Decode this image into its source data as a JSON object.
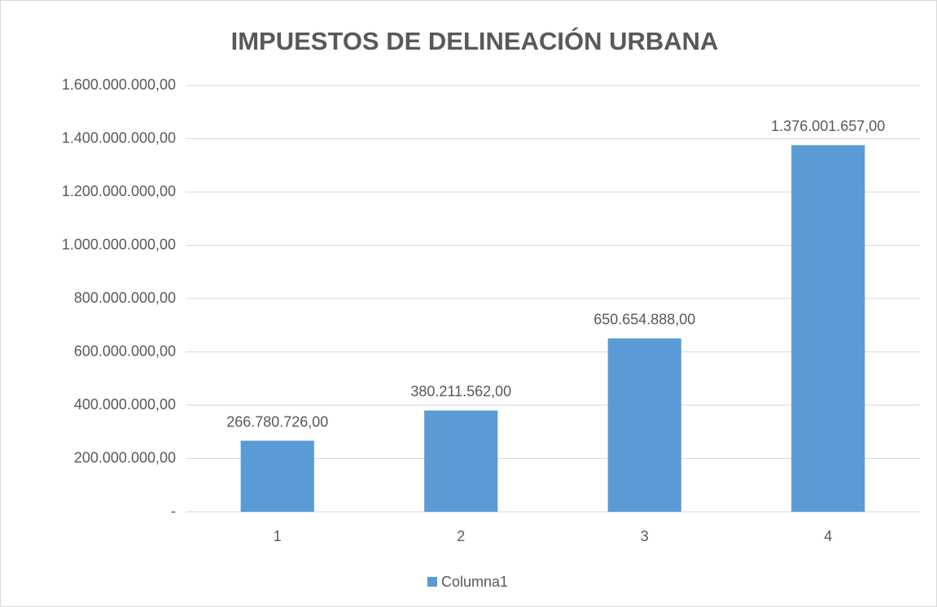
{
  "chart_data": {
    "type": "bar",
    "title": "IMPUESTOS DE DELINEACIÓN URBANA",
    "categories": [
      "1",
      "2",
      "3",
      "4"
    ],
    "series": [
      {
        "name": "Columna1",
        "color": "#5b9bd5",
        "values": [
          266780726,
          380211562,
          650654888,
          1376001657
        ],
        "value_labels": [
          "266.780.726,00",
          "380.211.562,00",
          "650.654.888,00",
          "1.376.001.657,00"
        ]
      }
    ],
    "ylim": [
      0,
      1600000000
    ],
    "yticks": [
      {
        "value": 0,
        "label": "-"
      },
      {
        "value": 200000000,
        "label": "200.000.000,00"
      },
      {
        "value": 400000000,
        "label": "400.000.000,00"
      },
      {
        "value": 600000000,
        "label": "600.000.000,00"
      },
      {
        "value": 800000000,
        "label": "800.000.000,00"
      },
      {
        "value": 1000000000,
        "label": "1.000.000.000,00"
      },
      {
        "value": 1200000000,
        "label": "1.200.000.000,00"
      },
      {
        "value": 1400000000,
        "label": "1.400.000.000,00"
      },
      {
        "value": 1600000000,
        "label": "1.600.000.000,00"
      }
    ],
    "grid": true,
    "legend": "bottom"
  }
}
